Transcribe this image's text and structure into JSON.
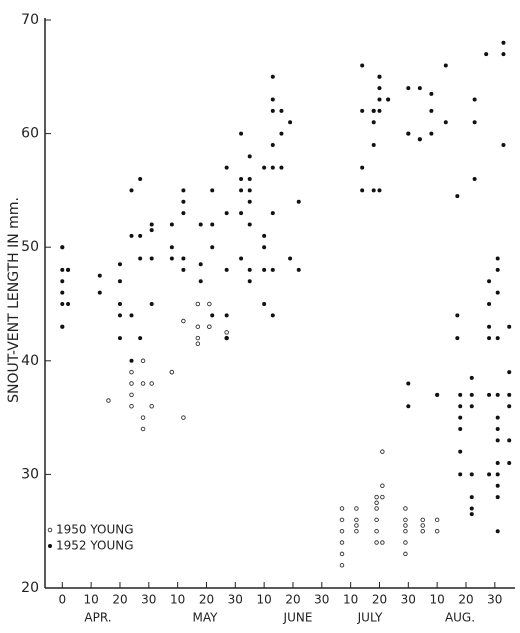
{
  "chart_data": {
    "type": "scatter",
    "ylabel": "SNOUT-VENT LENGTH IN mm.",
    "month_labels": [
      "APR.",
      "MAY",
      "JUNE",
      "JULY",
      "AUG."
    ],
    "xlim": [
      -6,
      157
    ],
    "ylim": [
      20,
      70
    ],
    "yticks": [
      20,
      30,
      40,
      50,
      60,
      70
    ],
    "xticks": [
      0,
      10,
      20,
      30,
      {
        "value": 40,
        "label": "10"
      },
      {
        "value": 50,
        "label": "20"
      },
      {
        "value": 60,
        "label": "30"
      },
      {
        "value": 70,
        "label": "10"
      },
      {
        "value": 80,
        "label": "20"
      },
      {
        "value": 90,
        "label": "30"
      },
      {
        "value": 100,
        "label": "10"
      },
      {
        "value": 110,
        "label": "20"
      },
      {
        "value": 120,
        "label": "30"
      },
      {
        "value": 130,
        "label": "10"
      },
      {
        "value": 140,
        "label": "20"
      },
      {
        "value": 150,
        "label": "30"
      }
    ],
    "legend": "lower left",
    "series": [
      {
        "name": "1950 YOUNG",
        "color": "#333333",
        "marker": "open",
        "x": [
          16,
          24,
          24,
          24,
          24,
          28,
          28,
          28,
          28,
          31,
          31,
          38,
          38,
          42,
          42,
          47,
          47,
          47,
          47,
          51,
          51,
          51,
          57,
          57,
          97,
          97,
          97,
          97,
          97,
          97,
          102,
          102,
          102,
          102,
          109,
          109,
          109,
          109,
          109,
          109,
          111,
          111,
          111,
          111,
          119,
          119,
          119,
          119,
          119,
          119,
          125,
          125,
          125,
          130,
          130
        ],
        "values": [
          36.5,
          39,
          38,
          37,
          36,
          40,
          38,
          35,
          34,
          38,
          36,
          39,
          39,
          35,
          43.5,
          45,
          43,
          42,
          41.5,
          43,
          43,
          45,
          42.5,
          42,
          27,
          26,
          25,
          24,
          23,
          22,
          27,
          26,
          25.5,
          25,
          28,
          27.5,
          27,
          26,
          25,
          24,
          32,
          29,
          28,
          24,
          27,
          26,
          25.5,
          25,
          24,
          23,
          26,
          25.5,
          25,
          26,
          25
        ]
      },
      {
        "name": "1952 YOUNG",
        "color": "#111111",
        "marker": "filled",
        "x": [
          0,
          0,
          0,
          0,
          0,
          0,
          0,
          0,
          2,
          2,
          2,
          13,
          13,
          20,
          20,
          20,
          20,
          20,
          24,
          24,
          24,
          24,
          27,
          27,
          27,
          27,
          31,
          31,
          31,
          31,
          38,
          38,
          38,
          42,
          42,
          42,
          42,
          42,
          48,
          48,
          48,
          52,
          52,
          52,
          52,
          57,
          57,
          57,
          57,
          57,
          62,
          62,
          62,
          62,
          62,
          65,
          65,
          65,
          65,
          65,
          65,
          65,
          70,
          70,
          70,
          70,
          70,
          73,
          73,
          73,
          73,
          73,
          73,
          73,
          73,
          76,
          76,
          76,
          79,
          79,
          82,
          82,
          104,
          104,
          104,
          104,
          108,
          108,
          108,
          108,
          108,
          110,
          110,
          110,
          110,
          110,
          110,
          113,
          113,
          120,
          120,
          120,
          124,
          124,
          124,
          128,
          128,
          128,
          133,
          133,
          137,
          137,
          137,
          143,
          143,
          143,
          147,
          153,
          153,
          153,
          120,
          120,
          130,
          130,
          138,
          138,
          138,
          138,
          138,
          138,
          142,
          142,
          142,
          142,
          142,
          142,
          142,
          148,
          148,
          148,
          148,
          148,
          148,
          151,
          151,
          151,
          151,
          151,
          151,
          151,
          151,
          151,
          151,
          151,
          151,
          151,
          155,
          155,
          155,
          155,
          155,
          155
        ],
        "values": [
          50,
          50,
          48,
          47,
          46,
          45,
          43,
          43,
          48,
          48,
          45,
          47.5,
          46,
          48.5,
          47,
          45,
          44,
          42,
          51,
          55,
          44,
          40,
          56,
          51,
          49,
          42,
          52,
          51.5,
          49,
          45,
          49,
          50,
          52,
          55,
          54,
          53,
          49,
          48,
          48.5,
          52,
          47,
          52,
          55,
          50,
          44,
          57,
          53,
          48,
          44,
          42,
          60,
          56,
          55,
          53,
          49,
          58,
          56,
          55,
          54,
          52,
          48,
          47,
          57,
          51,
          50,
          48,
          45,
          65,
          63,
          62,
          59,
          57,
          53,
          48,
          44,
          62,
          60,
          57,
          61,
          49,
          54,
          48,
          66,
          62,
          57,
          55,
          62,
          62,
          61,
          59,
          55,
          65,
          65,
          64,
          63,
          62,
          55,
          63,
          63,
          64,
          60,
          60,
          64,
          59.5,
          59.5,
          63.5,
          62,
          60,
          66,
          61,
          54.5,
          44,
          42,
          63,
          61,
          56,
          67,
          67,
          59,
          68,
          38,
          36,
          37,
          37,
          37,
          36,
          35,
          34,
          32,
          30,
          38.5,
          37,
          36,
          30,
          28,
          27,
          26.5,
          47,
          45,
          43,
          42,
          37,
          30,
          49,
          48,
          46,
          42,
          37,
          35,
          34,
          33,
          31,
          30,
          29,
          28,
          25,
          43,
          39,
          37,
          36,
          33,
          31
        ]
      }
    ]
  }
}
